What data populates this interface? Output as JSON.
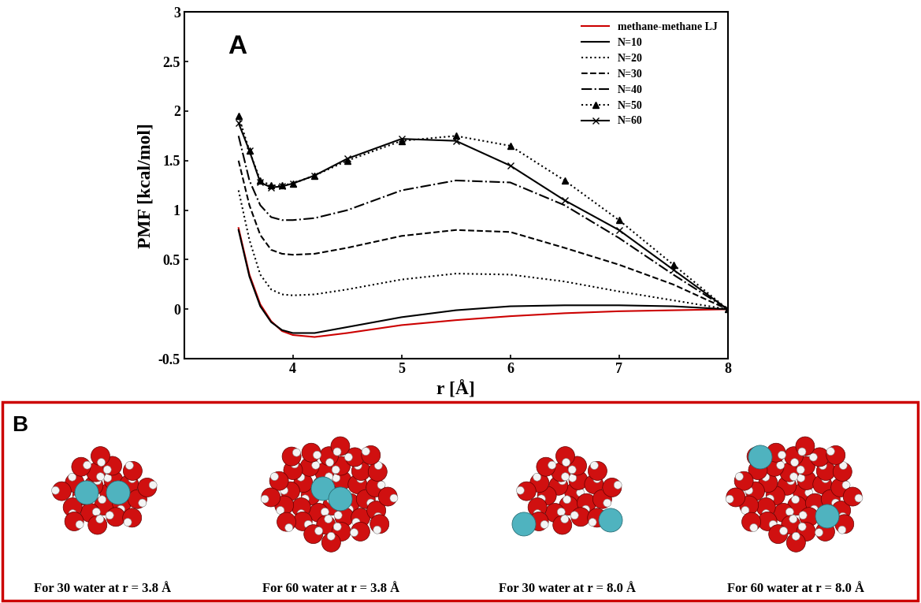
{
  "chart_data": {
    "type": "line",
    "panel_label": "A",
    "x_label": "r [Å]",
    "y_label": "PMF [kcal/mol]",
    "x": [
      3.5,
      3.6,
      3.7,
      3.8,
      3.9,
      4.0,
      4.2,
      4.5,
      5.0,
      5.5,
      6.0,
      6.5,
      7.0,
      7.5,
      8.0
    ],
    "series": [
      {
        "name": "methane-methane LJ",
        "color": "#cc0000",
        "line_style": "solid",
        "marker": "none",
        "values": [
          0.82,
          0.35,
          0.05,
          -0.12,
          -0.22,
          -0.26,
          -0.28,
          -0.24,
          -0.16,
          -0.11,
          -0.07,
          -0.04,
          -0.02,
          -0.01,
          0.0
        ]
      },
      {
        "name": "N=10",
        "color": "#000000",
        "line_style": "solid",
        "marker": "none",
        "values": [
          0.8,
          0.33,
          0.03,
          -0.13,
          -0.21,
          -0.24,
          -0.24,
          -0.18,
          -0.08,
          -0.01,
          0.03,
          0.04,
          0.04,
          0.03,
          0.0
        ]
      },
      {
        "name": "N=20",
        "color": "#000000",
        "line_style": "dotted",
        "marker": "none",
        "values": [
          1.2,
          0.7,
          0.35,
          0.2,
          0.15,
          0.14,
          0.15,
          0.2,
          0.3,
          0.36,
          0.35,
          0.28,
          0.18,
          0.09,
          0.0
        ]
      },
      {
        "name": "N=30",
        "color": "#000000",
        "line_style": "dashed",
        "marker": "none",
        "values": [
          1.5,
          1.05,
          0.75,
          0.6,
          0.56,
          0.55,
          0.56,
          0.62,
          0.74,
          0.8,
          0.78,
          0.62,
          0.45,
          0.25,
          0.0
        ]
      },
      {
        "name": "N=40",
        "color": "#000000",
        "line_style": "dashdot",
        "marker": "none",
        "values": [
          1.75,
          1.3,
          1.05,
          0.93,
          0.9,
          0.9,
          0.92,
          1.0,
          1.2,
          1.3,
          1.28,
          1.05,
          0.72,
          0.35,
          0.0
        ]
      },
      {
        "name": "N=50",
        "color": "#000000",
        "line_style": "dotted",
        "marker": "triangle",
        "values": [
          1.95,
          1.6,
          1.3,
          1.25,
          1.25,
          1.27,
          1.35,
          1.5,
          1.7,
          1.75,
          1.65,
          1.3,
          0.9,
          0.45,
          0.0
        ]
      },
      {
        "name": "N=60",
        "color": "#000000",
        "line_style": "solid",
        "marker": "x",
        "values": [
          1.88,
          1.6,
          1.28,
          1.23,
          1.24,
          1.27,
          1.35,
          1.52,
          1.72,
          1.7,
          1.45,
          1.1,
          0.8,
          0.4,
          0.0
        ]
      }
    ],
    "xlim": [
      3.0,
      8.0
    ],
    "xticks": [
      4,
      5,
      6,
      7,
      8
    ],
    "ylim": [
      -0.5,
      3
    ],
    "yticks": [
      -0.5,
      0,
      0.5,
      1,
      1.5,
      2,
      2.5,
      3
    ],
    "legend": "upper right",
    "grid": false
  },
  "panel_b": {
    "label": "B",
    "captions": [
      "For 30 water at r = 3.8 Å",
      "For 60 water at r = 3.8 Å",
      "For 30 water at r = 8.0 Å",
      "For 60 water at r = 8.0 Å"
    ]
  }
}
